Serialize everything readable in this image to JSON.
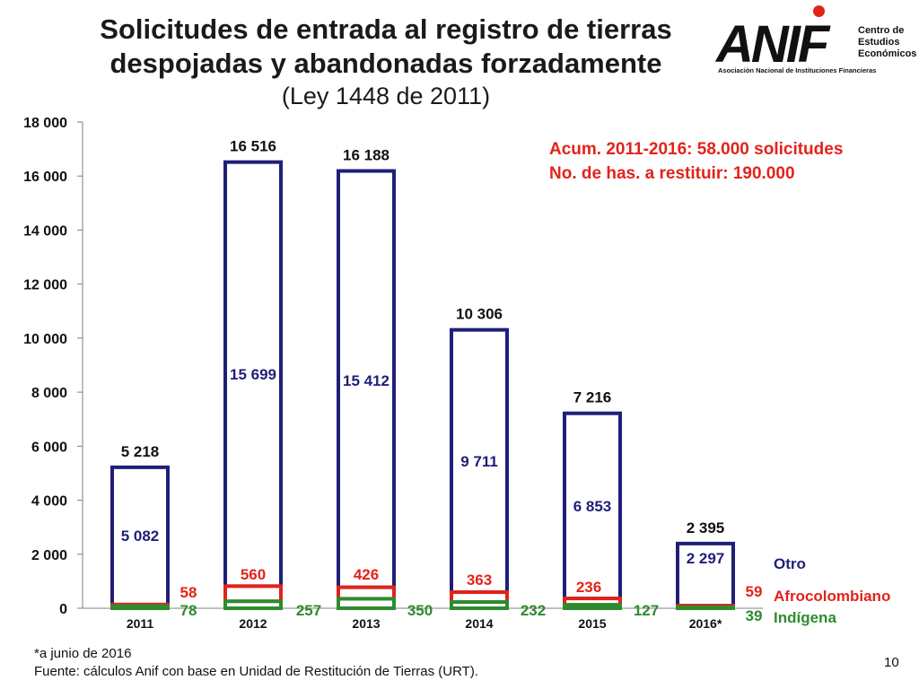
{
  "header": {
    "title_line1": "Solicitudes de entrada al registro de tierras",
    "title_line2": "despojadas y abandonadas forzadamente",
    "subtitle": "(Ley 1448 de 2011)"
  },
  "logo": {
    "wordmark": "ANIF",
    "center": "Centro de Estudios Económicos",
    "full_name": "Asociación Nacional de Instituciones Financieras"
  },
  "annotations": {
    "accum": "Acum. 2011-2016: 58.000 solicitudes",
    "hectares": "No. de has. a restituir: 190.000"
  },
  "footer": {
    "note": "*a junio de 2016",
    "source": "Fuente: cálculos Anif con base en Unidad de Restitución de Tierras (URT)."
  },
  "page_number": "10",
  "chart_data": {
    "type": "bar",
    "categories": [
      "2011",
      "2012",
      "2013",
      "2014",
      "2015",
      "2016*"
    ],
    "series": [
      {
        "name": "Indígena",
        "values": [
          78,
          257,
          350,
          232,
          127,
          39
        ],
        "color": "#2e8b2e"
      },
      {
        "name": "Afrocolombiano",
        "values": [
          58,
          560,
          426,
          363,
          236,
          59
        ],
        "color": "#e2231a"
      },
      {
        "name": "Otro",
        "values": [
          5082,
          15699,
          15412,
          9711,
          6853,
          2297
        ],
        "color": "#1f1f7a"
      }
    ],
    "totals": [
      5218,
      16516,
      16188,
      10306,
      7216,
      2395
    ],
    "total_labels": [
      "5 218",
      "16 516",
      "16 188",
      "10 306",
      "7 216",
      "2 395"
    ],
    "otro_labels": [
      "5 082",
      "15 699",
      "15 412",
      "9 711",
      "6 853",
      "2 297"
    ],
    "afro_labels": [
      "58",
      "560",
      "426",
      "363",
      "236",
      "59"
    ],
    "indigena_labels": [
      "78",
      "257",
      "350",
      "232",
      "127",
      "39"
    ],
    "yticks": [
      "0",
      "2 000",
      "4 000",
      "6 000",
      "8 000",
      "10 000",
      "12 000",
      "14 000",
      "16 000",
      "18 000"
    ],
    "ylim": [
      0,
      18000
    ],
    "legend": [
      "Otro",
      "Afrocolombiano",
      "Indígena"
    ]
  }
}
